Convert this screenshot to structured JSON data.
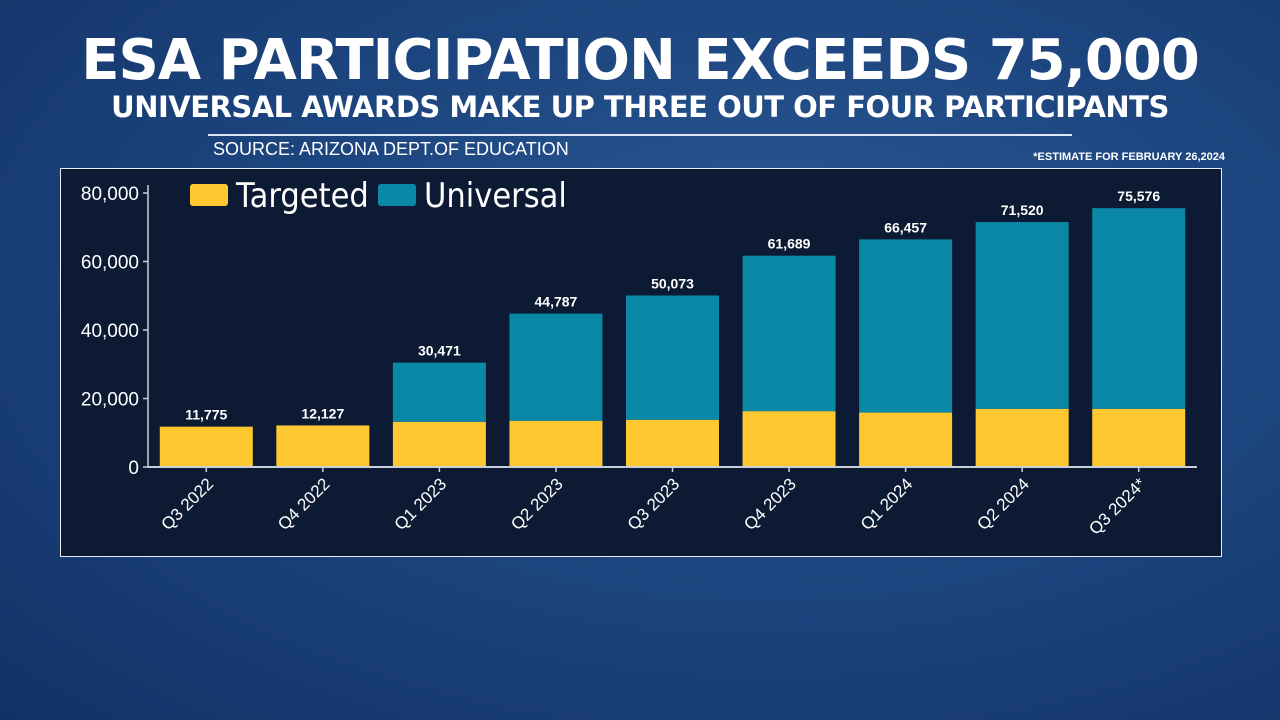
{
  "header": {
    "title": "ESA PARTICIPATION EXCEEDS 75,000",
    "subtitle": "UNIVERSAL AWARDS MAKE UP THREE OUT OF FOUR PARTICIPANTS",
    "source": "SOURCE: ARIZONA DEPT.OF EDUCATION",
    "note": "*ESTIMATE FOR FEBRUARY 26,2024"
  },
  "chart_data": {
    "type": "bar",
    "stacked": true,
    "categories": [
      "Q3 2022",
      "Q4 2022",
      "Q1 2023",
      "Q2 2023",
      "Q3 2023",
      "Q4 2023",
      "Q1 2024",
      "Q2 2024",
      "Q3 2024*"
    ],
    "series": [
      {
        "name": "Targeted",
        "color": "#ffc831",
        "values": [
          11775,
          12127,
          13200,
          13500,
          13800,
          16300,
          15900,
          17000,
          17000
        ]
      },
      {
        "name": "Universal",
        "color": "#0a88a6",
        "values": [
          0,
          0,
          17271,
          31287,
          36273,
          45389,
          50557,
          54520,
          58576
        ]
      }
    ],
    "totals": [
      "11,775",
      "12,127",
      "30,471",
      "44,787",
      "50,073",
      "61,689",
      "66,457",
      "71,520",
      "75,576"
    ],
    "totals_values": [
      11775,
      12127,
      30471,
      44787,
      50073,
      61689,
      66457,
      71520,
      75576
    ],
    "ylim": [
      0,
      80000
    ],
    "yticks": [
      0,
      20000,
      40000,
      60000,
      80000
    ],
    "ytick_labels": [
      "0",
      "20,000",
      "40,000",
      "60,000",
      "80,000"
    ],
    "legend": [
      "Targeted",
      "Universal"
    ],
    "legend_position": "top-left",
    "grid": false
  }
}
